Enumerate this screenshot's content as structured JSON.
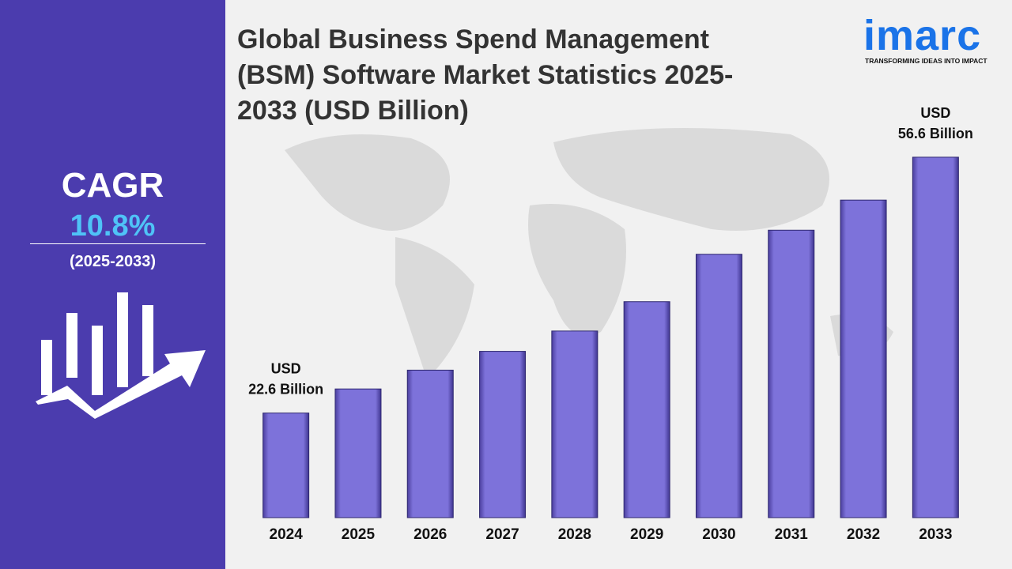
{
  "header": {
    "cagr_label": "CAGR",
    "cagr_value": "10.8%",
    "cagr_period": "(2025-2033)",
    "logo": "imarc",
    "tagline": "TRANSFORMING IDEAS INTO IMPACT"
  },
  "chart_data": {
    "type": "bar",
    "title": "Global Business Spend Management (BSM) Software Market Statistics 2025-2033 (USD Billion)",
    "categories": [
      "2024",
      "2025",
      "2026",
      "2027",
      "2028",
      "2029",
      "2030",
      "2031",
      "2032",
      "2033"
    ],
    "values": [
      22.6,
      25.8,
      28.3,
      30.8,
      33.5,
      37.4,
      43.7,
      46.9,
      50.9,
      56.6
    ],
    "value_labels": [
      "USD 22.6 Billion",
      null,
      null,
      null,
      null,
      null,
      null,
      null,
      null,
      "USD 56.6 Billion"
    ],
    "color": "#7d72da",
    "ylim": [
      8.7,
      62
    ]
  }
}
